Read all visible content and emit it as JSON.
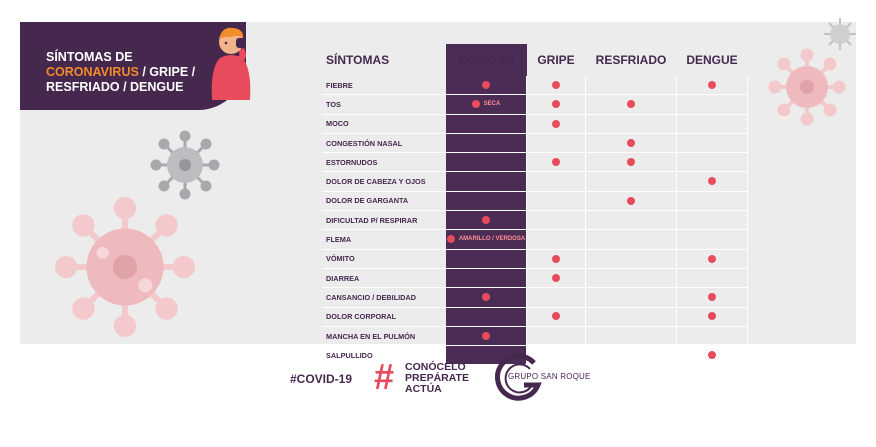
{
  "title": {
    "line1": "SÍNTOMAS DE",
    "line2_accent": "CORONAVIRUS",
    "line2_rest": " / GRIPE /",
    "line3": "RESFRIADO / DENGUE"
  },
  "table": {
    "headers": [
      "SÍNTOMAS",
      "COVID-19",
      "GRIPE",
      "RESFRIADO",
      "DENGUE"
    ],
    "rows": [
      {
        "name": "FIEBRE",
        "cells": [
          "dot",
          "dot",
          "",
          "dot"
        ]
      },
      {
        "name": "TOS",
        "cells": [
          "note:SECA",
          "dot",
          "dot",
          ""
        ]
      },
      {
        "name": "MOCO",
        "cells": [
          "",
          "dot",
          "",
          ""
        ]
      },
      {
        "name": "CONGESTIÓN NASAL",
        "cells": [
          "",
          "",
          "dot",
          ""
        ]
      },
      {
        "name": "ESTORNUDOS",
        "cells": [
          "",
          "dot",
          "dot",
          ""
        ]
      },
      {
        "name": "DOLOR DE CABEZA Y OJOS",
        "cells": [
          "",
          "",
          "",
          "dot"
        ]
      },
      {
        "name": "DOLOR DE GARGANTA",
        "cells": [
          "",
          "",
          "dot",
          ""
        ]
      },
      {
        "name": "DIFICULTAD P/ RESPIRAR",
        "cells": [
          "dot",
          "",
          "",
          ""
        ]
      },
      {
        "name": "FLEMA",
        "cells": [
          "note:AMARILLO / VERDOSA",
          "",
          "",
          ""
        ]
      },
      {
        "name": "VÓMITO",
        "cells": [
          "",
          "dot",
          "",
          "dot"
        ]
      },
      {
        "name": "DIARREA",
        "cells": [
          "",
          "dot",
          "",
          ""
        ]
      },
      {
        "name": "CANSANCIO / DEBILIDAD",
        "cells": [
          "dot",
          "",
          "",
          "dot"
        ]
      },
      {
        "name": "DOLOR CORPORAL",
        "cells": [
          "",
          "dot",
          "",
          "dot"
        ]
      },
      {
        "name": "MANCHA EN EL PULMÓN",
        "cells": [
          "dot",
          "",
          "",
          ""
        ]
      },
      {
        "name": "SALPULLIDO",
        "cells": [
          "",
          "",
          "",
          "dot"
        ]
      }
    ]
  },
  "footer": {
    "hashtag": "#COVID-19",
    "hash_symbol": "#",
    "slogan": [
      "CONÓCELO",
      "PREPÁRATE",
      "ACTÚA"
    ],
    "logo_text": "GRUPO SAN ROQUE"
  },
  "colors": {
    "purple": "#46284f",
    "covid_column": "#4b2c55",
    "dot": "#e84b5c",
    "accent_orange": "#f18b2b",
    "panel": "#ececec"
  },
  "icons": [
    "virus-icon",
    "person-coughing-illustration",
    "dot-marker",
    "grupo-san-roque-logo"
  ]
}
